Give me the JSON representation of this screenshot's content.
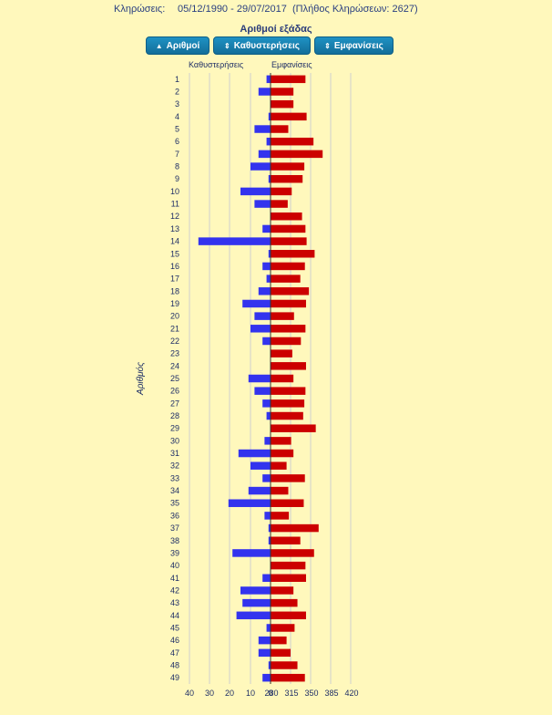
{
  "header": {
    "label": "Κληρώσεις:",
    "range": "05/12/1990 - 29/07/2017",
    "count_text": "(Πλήθος Κληρώσεων: 2627)"
  },
  "subtitle": "Αριθμοί εξάδας",
  "buttons": [
    {
      "label": "Αριθμοί",
      "icon": "sort-up-icon"
    },
    {
      "label": "Καθυστερήσεις",
      "icon": "sort-both-icon"
    },
    {
      "label": "Εμφανίσεις",
      "icon": "sort-both-icon"
    }
  ],
  "colors": {
    "delays": "#3333ee",
    "appearances": "#cc0000",
    "background": "#fff8bc"
  },
  "chart_data": {
    "type": "bar",
    "orientation": "horizontal",
    "ylabel": "Αριθμός",
    "categories": [
      "1",
      "2",
      "3",
      "4",
      "5",
      "6",
      "7",
      "8",
      "9",
      "10",
      "11",
      "12",
      "13",
      "14",
      "15",
      "16",
      "17",
      "18",
      "19",
      "20",
      "21",
      "22",
      "23",
      "24",
      "25",
      "26",
      "27",
      "28",
      "29",
      "30",
      "31",
      "32",
      "33",
      "34",
      "35",
      "36",
      "37",
      "38",
      "39",
      "40",
      "41",
      "42",
      "43",
      "44",
      "45",
      "46",
      "47",
      "48",
      "49"
    ],
    "series": [
      {
        "name": "Καθυστερήσεις",
        "xticks": [
          "40",
          "30",
          "20",
          "10",
          "0"
        ],
        "xlim": [
          40,
          0
        ],
        "values": [
          2,
          6,
          0,
          1,
          8,
          2,
          6,
          10,
          1,
          15,
          8,
          0,
          4,
          36,
          1,
          4,
          2,
          6,
          14,
          8,
          10,
          4,
          0,
          0,
          11,
          8,
          4,
          2,
          0,
          3,
          16,
          10,
          4,
          11,
          21,
          3,
          1,
          1,
          19,
          0,
          4,
          15,
          14,
          17,
          2,
          6,
          6,
          1,
          4
        ]
      },
      {
        "name": "Εμφανίσεις",
        "xticks": [
          "280",
          "315",
          "350",
          "385",
          "420"
        ],
        "xlim": [
          280,
          420
        ],
        "values": [
          341,
          320,
          320,
          343,
          311,
          355,
          371,
          339,
          336,
          317,
          310,
          335,
          341,
          343,
          357,
          340,
          332,
          347,
          342,
          321,
          341,
          333,
          318,
          342,
          320,
          341,
          339,
          337,
          359,
          316,
          320,
          308,
          340,
          311,
          338,
          312,
          364,
          332,
          356,
          341,
          342,
          320,
          327,
          342,
          322,
          308,
          315,
          327,
          340
        ]
      }
    ]
  }
}
